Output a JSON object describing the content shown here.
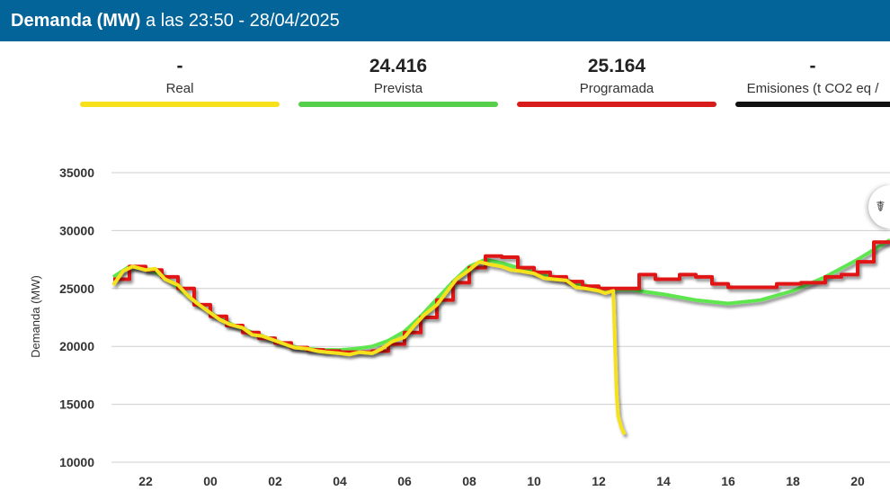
{
  "header": {
    "title_bold": "Demanda (MW)",
    "title_rest": " a las 23:50 - 28/04/2025"
  },
  "cards": [
    {
      "value": "-",
      "label": "Real",
      "color": "#f7e11d"
    },
    {
      "value": "24.416",
      "label": "Prevista",
      "color": "#56cf4b"
    },
    {
      "value": "25.164",
      "label": "Programada",
      "color": "#d81b1b"
    },
    {
      "value": "-",
      "label": "Emisiones (t CO2 eq /",
      "color": "#111111"
    }
  ],
  "fab": {
    "icon": "chart-tool-icon",
    "glyph": "☤"
  },
  "chart_data": {
    "type": "line",
    "ylabel": "Demanda (MW)",
    "xlabel": "",
    "ylim": [
      10000,
      35000
    ],
    "yticks": [
      10000,
      15000,
      20000,
      25000,
      30000,
      35000
    ],
    "x_unit": "hours since 21:00",
    "xlim": [
      -0.1,
      24
    ],
    "xticks": [
      {
        "x": 1,
        "label": "22"
      },
      {
        "x": 3,
        "label": "00"
      },
      {
        "x": 5,
        "label": "02"
      },
      {
        "x": 7,
        "label": "04"
      },
      {
        "x": 9,
        "label": "06"
      },
      {
        "x": 11,
        "label": "08"
      },
      {
        "x": 13,
        "label": "10"
      },
      {
        "x": 15,
        "label": "12"
      },
      {
        "x": 17,
        "label": "14"
      },
      {
        "x": 19,
        "label": "16"
      },
      {
        "x": 21,
        "label": "18"
      },
      {
        "x": 23,
        "label": "20"
      }
    ],
    "grid": true,
    "series": [
      {
        "name": "Prevista",
        "color": "#5ee64f",
        "step": false,
        "x": [
          0,
          0.5,
          1,
          1.5,
          2,
          2.5,
          3,
          3.5,
          4,
          4.5,
          5,
          5.5,
          6,
          6.5,
          7,
          7.5,
          8,
          8.5,
          9,
          9.5,
          10,
          10.5,
          11,
          11.5,
          12,
          12.5,
          13,
          13.5,
          14,
          14.5,
          15,
          15.5,
          16,
          17,
          18,
          19,
          20,
          21,
          22,
          23,
          24
        ],
        "y": [
          26000,
          26900,
          26700,
          26200,
          25100,
          23900,
          22900,
          22100,
          21500,
          21000,
          20500,
          20000,
          19800,
          19700,
          19700,
          19800,
          20000,
          20500,
          21300,
          22600,
          24100,
          25600,
          26900,
          27500,
          27200,
          26800,
          26400,
          26000,
          25700,
          25300,
          25000,
          24900,
          24900,
          24500,
          24000,
          23700,
          24000,
          24800,
          26000,
          27500,
          29200
        ]
      },
      {
        "name": "Programada",
        "color": "#e01515",
        "step": true,
        "x": [
          0,
          0.5,
          1,
          1.5,
          2,
          2.5,
          3,
          3.5,
          4,
          4.5,
          5,
          5.5,
          6,
          6.5,
          7,
          7.5,
          8,
          8.5,
          9,
          9.5,
          10,
          10.5,
          11,
          11.5,
          12,
          12.5,
          13,
          13.5,
          14,
          14.5,
          15,
          15.5,
          16,
          16.25,
          16.75,
          17.5,
          18,
          18.5,
          19,
          19.75,
          20.5,
          21.25,
          22,
          22.5,
          23,
          23.5,
          24
        ],
        "y": [
          25800,
          26900,
          26600,
          26000,
          25000,
          23600,
          22600,
          21800,
          21200,
          20700,
          20300,
          19900,
          19700,
          19600,
          19500,
          19500,
          19600,
          20200,
          21200,
          22500,
          24000,
          25500,
          26800,
          27800,
          27700,
          26800,
          26400,
          26000,
          25600,
          25200,
          25000,
          25000,
          25000,
          26200,
          25800,
          26200,
          26000,
          25400,
          25100,
          25100,
          25400,
          25500,
          26000,
          26200,
          27300,
          29000,
          29000
        ]
      },
      {
        "name": "Real",
        "color": "#f5e21a",
        "step": false,
        "x": [
          0,
          0.3,
          0.6,
          1,
          1.3,
          1.6,
          2,
          2.3,
          2.6,
          3,
          3.3,
          3.6,
          4,
          4.3,
          4.6,
          5,
          5.3,
          5.6,
          6,
          6.3,
          6.6,
          7,
          7.3,
          7.6,
          8,
          8.3,
          8.6,
          9,
          9.3,
          9.6,
          10,
          10.3,
          10.6,
          11,
          11.3,
          11.6,
          12,
          12.3,
          12.6,
          13,
          13.3,
          13.6,
          14,
          14.3,
          14.6,
          15,
          15.2,
          15.45,
          15.55,
          15.6,
          15.7,
          15.8
        ],
        "y": [
          25300,
          26500,
          26900,
          26600,
          26700,
          25800,
          25300,
          24400,
          23700,
          22900,
          22300,
          21900,
          21600,
          21000,
          20900,
          20500,
          20200,
          19900,
          19800,
          19600,
          19500,
          19400,
          19300,
          19500,
          19400,
          19800,
          20400,
          20800,
          21800,
          22700,
          23600,
          24700,
          25800,
          26600,
          27300,
          27100,
          26900,
          26600,
          26500,
          26300,
          25900,
          25800,
          25700,
          25100,
          25000,
          24800,
          24600,
          24800,
          16000,
          14000,
          13000,
          12400
        ]
      }
    ]
  }
}
